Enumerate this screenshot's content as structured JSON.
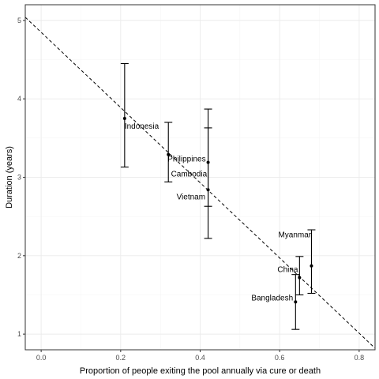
{
  "chart_data": {
    "type": "scatter",
    "xlabel": "Proportion of people exiting the pool annually via cure or death",
    "ylabel": "Duration (years)",
    "xlim": [
      -0.04,
      0.84
    ],
    "ylim": [
      0.8,
      5.2
    ],
    "x_ticks": [
      "0.0",
      "0.2",
      "0.4",
      "0.6",
      "0.8"
    ],
    "x_tick_values": [
      0.0,
      0.2,
      0.4,
      0.6,
      0.8
    ],
    "y_ticks": [
      "1",
      "2",
      "3",
      "4",
      "5"
    ],
    "y_tick_values": [
      1,
      2,
      3,
      4,
      5
    ],
    "grid": true,
    "points": [
      {
        "label": "Indonesia",
        "x": 0.21,
        "y": 3.75,
        "ymin": 3.13,
        "ymax": 4.45
      },
      {
        "label": "Philippines",
        "x": 0.32,
        "y": 3.29,
        "ymin": 2.94,
        "ymax": 3.7
      },
      {
        "label": "Cambodia",
        "x": 0.42,
        "y": 3.19,
        "ymin": 2.63,
        "ymax": 3.87
      },
      {
        "label": "Vietnam",
        "x": 0.42,
        "y": 2.84,
        "ymin": 2.22,
        "ymax": 3.63
      },
      {
        "label": "Myanmar",
        "x": 0.68,
        "y": 1.87,
        "ymin": 1.52,
        "ymax": 2.33
      },
      {
        "label": "China",
        "x": 0.65,
        "y": 1.72,
        "ymin": 1.5,
        "ymax": 1.99
      },
      {
        "label": "Bangladesh",
        "x": 0.64,
        "y": 1.41,
        "ymin": 1.06,
        "ymax": 1.76
      }
    ],
    "reference_line": {
      "style": "dashed",
      "x": [
        -0.04,
        0.84
      ],
      "y": [
        5.04,
        0.82
      ]
    }
  }
}
